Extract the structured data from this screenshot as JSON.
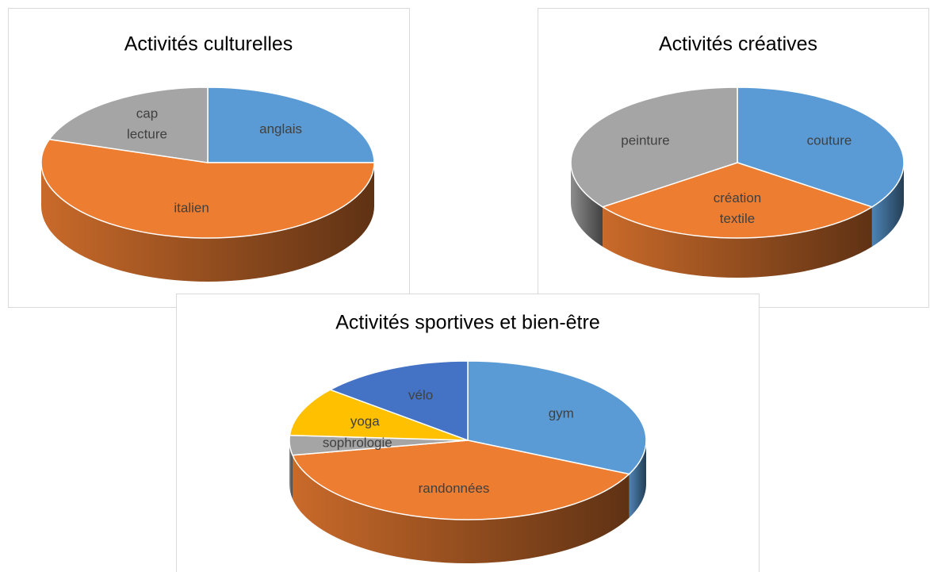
{
  "chart_data": [
    {
      "type": "pie",
      "title": "Activités culturelles",
      "categories": [
        "anglais",
        "italien",
        "cap lecture"
      ],
      "values": [
        25,
        55,
        20
      ],
      "colors": [
        "#5b9bd5",
        "#ed7d31",
        "#a5a5a5"
      ]
    },
    {
      "type": "pie",
      "title": "Activités créatives",
      "categories": [
        "couture",
        "création textile",
        "peinture"
      ],
      "values": [
        35,
        30,
        35
      ],
      "colors": [
        "#5b9bd5",
        "#ed7d31",
        "#a5a5a5"
      ]
    },
    {
      "type": "pie",
      "title": "Activités sportives et bien-être",
      "categories": [
        "gym",
        "randonnées",
        "sophrologie",
        "yoga",
        "vélo"
      ],
      "values": [
        32,
        40,
        4,
        10,
        14
      ],
      "colors": [
        "#5b9bd5",
        "#ed7d31",
        "#a5a5a5",
        "#ffc000",
        "#4472c4"
      ]
    }
  ]
}
